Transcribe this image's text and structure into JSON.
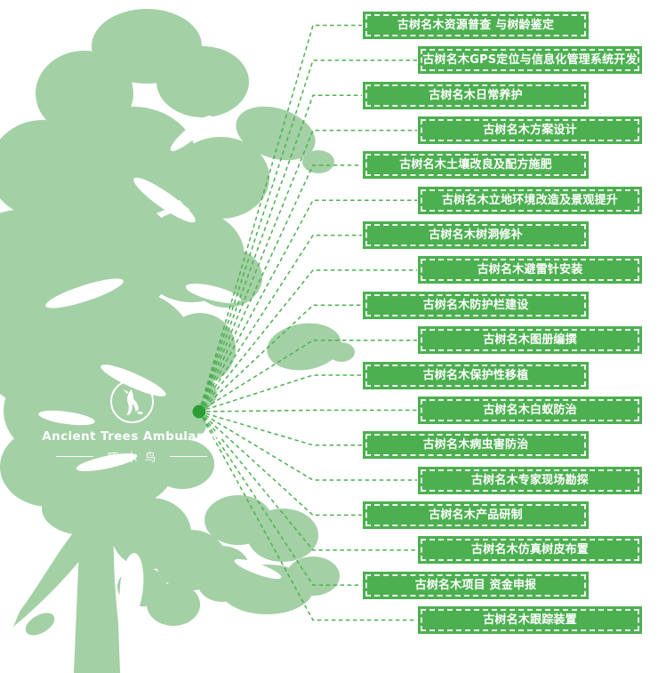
{
  "logo": {
    "name": "Ancient Trees Ambulance",
    "chinese_name": "啄木鸟"
  },
  "colors": {
    "tree": "#a3d0a5",
    "green": "#4cb050",
    "dot": "#2d9e35"
  },
  "services": [
    "古树名木资源普查 与树龄鉴定",
    "古树名木GPS定位与信息化管理系统开发",
    "古树名木日常养护",
    "古树名木方案设计",
    "古树名木土壤改良及配方施肥",
    "古树名木立地环境改造及景观提升",
    "古树名木树洞修补",
    "古树名木避雷针安装",
    "古树名木防护栏建设",
    "古树名木图册编撰",
    "古树名木保护性移植",
    "古树名木白蚁防治",
    "古树名木病虫害防治",
    "古树名木专家现场勘探",
    "古树名木产品研制",
    "古树名木仿真树皮布置",
    "古树名木项目 资金申报",
    "古树名木跟踪装置"
  ]
}
